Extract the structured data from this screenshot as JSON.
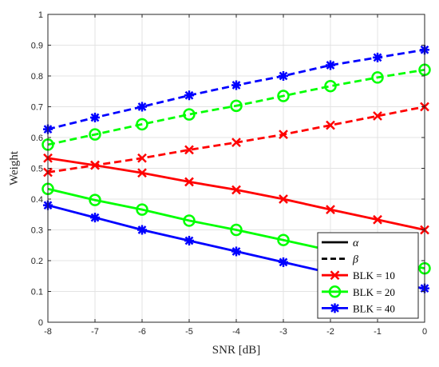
{
  "chart_data": {
    "type": "line",
    "xlabel": "SNR [dB]",
    "ylabel": "Weight",
    "xlim": [
      -8,
      0
    ],
    "ylim": [
      0,
      1
    ],
    "xticks": [
      -8,
      -7,
      -6,
      -5,
      -4,
      -3,
      -2,
      -1,
      0
    ],
    "xtick_labels": [
      "-8",
      "-7",
      "-6",
      "-5",
      "-4",
      "-3",
      "-2",
      "-1",
      "0"
    ],
    "yticks": [
      0,
      0.1,
      0.2,
      0.3,
      0.4,
      0.5,
      0.6,
      0.7,
      0.8,
      0.9,
      1
    ],
    "ytick_labels": [
      "0",
      "0.1",
      "0.2",
      "0.3",
      "0.4",
      "0.5",
      "0.6",
      "0.7",
      "0.8",
      "0.9",
      "1"
    ],
    "grid": true,
    "legend_position": "bottom-right",
    "x": [
      -8,
      -7,
      -6,
      -5,
      -4,
      -3,
      -2,
      -1,
      0
    ],
    "series": [
      {
        "style": "solid",
        "marker": "x",
        "color": "#ff0000",
        "values": [
          0.533,
          0.51,
          0.485,
          0.456,
          0.43,
          0.4,
          0.366,
          0.333,
          0.3
        ]
      },
      {
        "style": "dashed",
        "marker": "x",
        "color": "#ff0000",
        "values": [
          0.487,
          0.51,
          0.533,
          0.56,
          0.584,
          0.61,
          0.64,
          0.67,
          0.7
        ]
      },
      {
        "style": "solid",
        "marker": "o",
        "color": "#00ff00",
        "values": [
          0.433,
          0.397,
          0.366,
          0.33,
          0.3,
          0.267,
          0.233,
          0.205,
          0.175
        ]
      },
      {
        "style": "dashed",
        "marker": "o",
        "color": "#00ff00",
        "values": [
          0.577,
          0.61,
          0.643,
          0.675,
          0.703,
          0.735,
          0.767,
          0.795,
          0.82
        ]
      },
      {
        "style": "solid",
        "marker": "*",
        "color": "#0000ff",
        "values": [
          0.38,
          0.34,
          0.3,
          0.265,
          0.23,
          0.195,
          0.16,
          0.13,
          0.11
        ]
      },
      {
        "style": "dashed",
        "marker": "*",
        "color": "#0000ff",
        "values": [
          0.627,
          0.665,
          0.7,
          0.737,
          0.77,
          0.8,
          0.835,
          0.86,
          0.885
        ]
      }
    ],
    "legend": [
      {
        "label": "α",
        "style": "solid",
        "color": "#000000",
        "marker": "none"
      },
      {
        "label": "β",
        "style": "dashed",
        "color": "#000000",
        "marker": "none"
      },
      {
        "label": "BLK = 10",
        "style": "solid",
        "color": "#ff0000",
        "marker": "x"
      },
      {
        "label": "BLK = 20",
        "style": "solid",
        "color": "#00ff00",
        "marker": "o"
      },
      {
        "label": "BLK = 40",
        "style": "solid",
        "color": "#0000ff",
        "marker": "*"
      }
    ]
  }
}
